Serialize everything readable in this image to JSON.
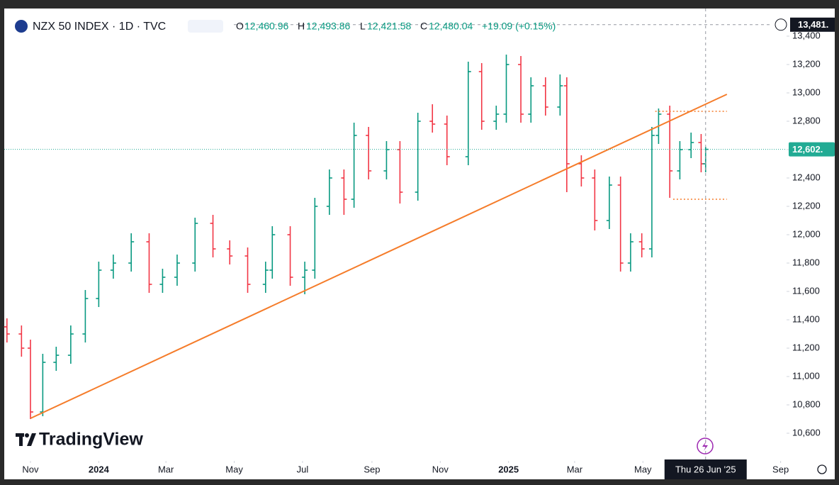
{
  "chart_data": {
    "type": "ohlc",
    "title": "NZX 50 INDEX · 1D · TVC",
    "legend": {
      "open_label": "O",
      "open": "12,460.96",
      "high_label": "H",
      "high": "12,493.86",
      "low_label": "L",
      "low": "12,421.58",
      "close_label": "C",
      "close": "12,480.04",
      "change": "+19.09 (+0.15%)"
    },
    "x": [
      -21,
      -8,
      0,
      11,
      23,
      36,
      49,
      61,
      74,
      90,
      106,
      118,
      131,
      147,
      163,
      178,
      194,
      210,
      216,
      232,
      245,
      254,
      267,
      280,
      289,
      302,
      318,
      330,
      346,
      359,
      372,
      391,
      403,
      416,
      425,
      438,
      447,
      460,
      473,
      479,
      492,
      504,
      517,
      527,
      536,
      546,
      555,
      561,
      571,
      580,
      590,
      599,
      603
    ],
    "open": [
      11350,
      11300,
      11200,
      10750,
      11100,
      11150,
      11300,
      11550,
      11750,
      11800,
      11950,
      11650,
      11700,
      11800,
      12080,
      11900,
      11850,
      11650,
      11750,
      12000,
      11700,
      11750,
      12200,
      12400,
      12250,
      12700,
      12450,
      12600,
      12300,
      12800,
      12780,
      12550,
      13150,
      12800,
      12850,
      13200,
      12850,
      13050,
      12900,
      13050,
      12500,
      12400,
      12100,
      12350,
      11800,
      11950,
      11900,
      12700,
      12850,
      12450,
      12600,
      12650,
      12500
    ],
    "high": [
      11410,
      11360,
      11260,
      11160,
      11210,
      11360,
      11610,
      11810,
      11860,
      12010,
      12010,
      11760,
      11860,
      12120,
      12140,
      11960,
      11910,
      11810,
      12060,
      12060,
      11810,
      12260,
      12460,
      12460,
      12790,
      12760,
      12660,
      12660,
      12860,
      12920,
      12840,
      13220,
      13210,
      12910,
      13270,
      13260,
      13110,
      13110,
      13130,
      13110,
      12560,
      12460,
      12410,
      12410,
      12010,
      12010,
      12760,
      12890,
      12910,
      12660,
      12720,
      12710,
      12620
    ],
    "low": [
      11240,
      11140,
      10700,
      10720,
      11040,
      11090,
      11240,
      11490,
      11690,
      11740,
      11590,
      11590,
      11640,
      11740,
      11840,
      11790,
      11590,
      11590,
      11690,
      11640,
      11580,
      11690,
      12140,
      12140,
      12190,
      12390,
      12390,
      12220,
      12240,
      12720,
      12490,
      12490,
      12740,
      12740,
      12790,
      12790,
      12790,
      12840,
      12840,
      12300,
      12340,
      12030,
      12040,
      11740,
      11740,
      11840,
      11840,
      12640,
      12260,
      12390,
      12540,
      12440,
      12440
    ],
    "close": [
      11300,
      11200,
      10750,
      11100,
      11150,
      11300,
      11550,
      11750,
      11800,
      11950,
      11650,
      11700,
      11800,
      12080,
      11900,
      11850,
      11650,
      11750,
      12000,
      11700,
      11750,
      12200,
      12400,
      12250,
      12700,
      12450,
      12600,
      12300,
      12800,
      12780,
      12550,
      13150,
      12800,
      12850,
      13200,
      12850,
      13050,
      12900,
      13050,
      12500,
      12400,
      12100,
      12350,
      11800,
      11950,
      11900,
      12700,
      12850,
      12450,
      12600,
      12650,
      12500,
      12602
    ],
    "up_color": "#089981",
    "down_color": "#f23645",
    "xlim": [
      -27.2,
      675.3
    ],
    "ylim": [
      10415,
      13655
    ],
    "xticks": [
      {
        "value": 0,
        "label": "Nov"
      },
      {
        "value": 61,
        "label": "2024"
      },
      {
        "value": 121,
        "label": "Mar"
      },
      {
        "value": 182,
        "label": "May"
      },
      {
        "value": 243,
        "label": "Jul"
      },
      {
        "value": 305,
        "label": "Sep"
      },
      {
        "value": 366,
        "label": "Nov"
      },
      {
        "value": 427,
        "label": "2025"
      },
      {
        "value": 486,
        "label": "Mar"
      },
      {
        "value": 547,
        "label": "May"
      },
      {
        "value": 670,
        "label": "Sep"
      }
    ],
    "yticks": [
      {
        "value": 10600,
        "label": "10,600"
      },
      {
        "value": 10800,
        "label": "10,800"
      },
      {
        "value": 11000,
        "label": "11,000"
      },
      {
        "value": 11200,
        "label": "11,200"
      },
      {
        "value": 11400,
        "label": "11,400"
      },
      {
        "value": 11600,
        "label": "11,600"
      },
      {
        "value": 11800,
        "label": "11,800"
      },
      {
        "value": 12000,
        "label": "12,000"
      },
      {
        "value": 12200,
        "label": "12,200"
      },
      {
        "value": 12400,
        "label": "12,400"
      },
      {
        "value": 12600,
        "label": "12,600"
      },
      {
        "value": 12800,
        "label": "12,800"
      },
      {
        "value": 13000,
        "label": "13,000"
      },
      {
        "value": 13200,
        "label": "13,200"
      },
      {
        "value": 13400,
        "label": "13,400"
      }
    ],
    "trendline": {
      "x": [
        0,
        622
      ],
      "y": [
        10705,
        12990
      ],
      "color": "#f57c2a"
    },
    "levels": [
      {
        "x": [
          558,
          622
        ],
        "y": 12870
      },
      {
        "x": [
          574,
          622
        ],
        "y": 12250
      }
    ],
    "last_price": {
      "value": 12602,
      "label": "12,602.",
      "color": "#22ab94"
    },
    "crosshair": {
      "x": 603,
      "x_label": "Thu 26 Jun '25",
      "y": 13481,
      "y_label": "13,481."
    },
    "watermark": "TradingView"
  }
}
